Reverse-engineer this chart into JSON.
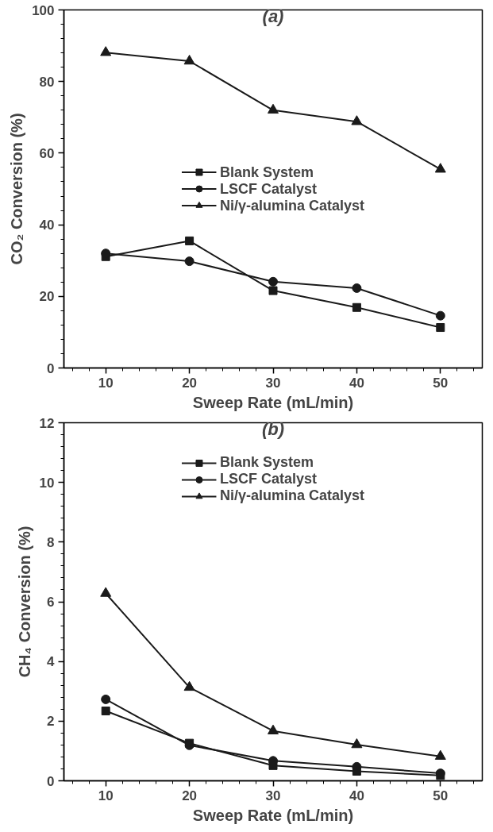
{
  "chart_data": [
    {
      "type": "line",
      "title": "(a)",
      "xlabel": "Sweep Rate (mL/min)",
      "ylabel": "CO₂ Conversion (%)",
      "x": [
        10,
        20,
        30,
        40,
        50
      ],
      "xlim": [
        5,
        55
      ],
      "xticks": [
        10,
        20,
        30,
        40,
        50
      ],
      "ylim": [
        0,
        100
      ],
      "yticks": [
        0,
        20,
        40,
        60,
        80,
        100
      ],
      "grid": false,
      "legend": "center",
      "series": [
        {
          "name": "Blank System",
          "color": "#1a1a1a",
          "marker": "square",
          "values": [
            31.1,
            35.5,
            21.6,
            16.9,
            11.3
          ]
        },
        {
          "name": "LSCF Catalyst",
          "color": "#1a1a1a",
          "marker": "circle",
          "values": [
            32.0,
            29.8,
            24.1,
            22.3,
            14.6
          ]
        },
        {
          "name": "Ni/γ-alumina Catalyst",
          "color": "#1a1a1a",
          "marker": "triangle",
          "values": [
            88.1,
            85.7,
            72.0,
            68.8,
            55.5
          ]
        }
      ]
    },
    {
      "type": "line",
      "title": "(b)",
      "xlabel": "Sweep Rate (mL/min)",
      "ylabel": "CH₄ Conversion (%)",
      "x": [
        10,
        20,
        30,
        40,
        50
      ],
      "xlim": [
        5,
        55
      ],
      "xticks": [
        10,
        20,
        30,
        40,
        50
      ],
      "ylim": [
        0,
        12
      ],
      "yticks": [
        0,
        2,
        4,
        6,
        8,
        10,
        12
      ],
      "grid": false,
      "legend": "top",
      "series": [
        {
          "name": "Blank System",
          "color": "#1a1a1a",
          "marker": "square",
          "values": [
            2.34,
            1.26,
            0.51,
            0.32,
            0.18
          ]
        },
        {
          "name": "LSCF Catalyst",
          "color": "#1a1a1a",
          "marker": "circle",
          "values": [
            2.73,
            1.19,
            0.67,
            0.47,
            0.25
          ]
        },
        {
          "name": "Ni/γ-alumina Catalyst",
          "color": "#1a1a1a",
          "marker": "triangle",
          "values": [
            6.28,
            3.13,
            1.67,
            1.21,
            0.82
          ]
        }
      ]
    }
  ]
}
